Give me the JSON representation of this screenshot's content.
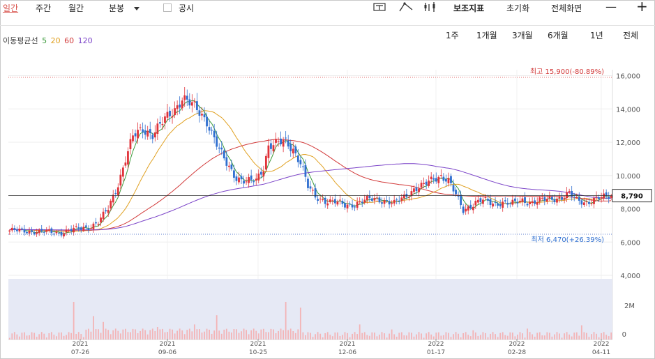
{
  "toolbar": {
    "tabs": [
      "일간",
      "주간",
      "월간"
    ],
    "interval": "분봉",
    "disclosure": "공시",
    "indicators": "보조지표",
    "reset": "초기화",
    "fullscreen": "전체화면",
    "minus": "—",
    "plus": "+"
  },
  "periods": [
    "1주",
    "1개월",
    "3개월",
    "6개월",
    "1년",
    "전체"
  ],
  "ma_legend": {
    "label": "이동평균선",
    "items": [
      {
        "name": "5",
        "color": "#3a9a3a"
      },
      {
        "name": "20",
        "color": "#e0a020"
      },
      {
        "name": "60",
        "color": "#d23a3a"
      },
      {
        "name": "120",
        "color": "#7a42c8"
      }
    ]
  },
  "colors": {
    "up": "#e0333a",
    "down": "#2f6fd0",
    "volume_bg": "#e6e9f5",
    "volume_bar": "#f3b4b6",
    "active_tab": "#d9544d"
  },
  "chart_data": {
    "type": "candlestick",
    "y_ticks": [
      "16,000",
      "14,000",
      "12,000",
      "10,000",
      "8,000",
      "6,000",
      "4,000"
    ],
    "ylim": [
      4000,
      16800
    ],
    "volume_ticks": [
      "2M",
      "0"
    ],
    "x_ticks": [
      {
        "year": "2021",
        "date": "07-26"
      },
      {
        "year": "2021",
        "date": "09-06"
      },
      {
        "year": "2021",
        "date": "10-25"
      },
      {
        "year": "2021",
        "date": "12-06"
      },
      {
        "year": "2022",
        "date": "01-17"
      },
      {
        "year": "2022",
        "date": "02-28"
      },
      {
        "year": "2022",
        "date": "04-11"
      }
    ],
    "high_label": "최고 15,900(-80.89%)",
    "high_value": 15900,
    "low_label": "최저 6,470(+26.39%)",
    "low_value": 6470,
    "current_price": 8790,
    "current_label": "8,790",
    "close_keypoints": [
      [
        0,
        6700
      ],
      [
        8,
        6650
      ],
      [
        16,
        6600
      ],
      [
        20,
        6550
      ],
      [
        24,
        6700
      ],
      [
        28,
        6800
      ],
      [
        32,
        6900
      ],
      [
        36,
        7200
      ],
      [
        40,
        8000
      ],
      [
        44,
        9500
      ],
      [
        47,
        11000
      ],
      [
        50,
        12300
      ],
      [
        54,
        12800
      ],
      [
        58,
        12500
      ],
      [
        61,
        13000
      ],
      [
        64,
        13500
      ],
      [
        67,
        14000
      ],
      [
        70,
        14700
      ],
      [
        74,
        14200
      ],
      [
        77,
        13800
      ],
      [
        80,
        13300
      ],
      [
        82,
        12600
      ],
      [
        85,
        11500
      ],
      [
        88,
        10700
      ],
      [
        92,
        9900
      ],
      [
        96,
        9600
      ],
      [
        100,
        9700
      ],
      [
        103,
        10500
      ],
      [
        105,
        11800
      ],
      [
        108,
        11900
      ],
      [
        112,
        12000
      ],
      [
        115,
        11600
      ],
      [
        118,
        10800
      ],
      [
        121,
        9300
      ],
      [
        124,
        8700
      ],
      [
        128,
        8500
      ],
      [
        132,
        8400
      ],
      [
        136,
        8200
      ],
      [
        140,
        8300
      ],
      [
        144,
        8500
      ],
      [
        148,
        8600
      ],
      [
        152,
        8500
      ],
      [
        156,
        8300
      ],
      [
        160,
        8700
      ],
      [
        164,
        9200
      ],
      [
        168,
        9400
      ],
      [
        172,
        9800
      ],
      [
        175,
        10000
      ],
      [
        178,
        9700
      ],
      [
        180,
        9100
      ],
      [
        182,
        8500
      ],
      [
        184,
        7900
      ],
      [
        186,
        8100
      ],
      [
        189,
        8400
      ],
      [
        192,
        8500
      ],
      [
        196,
        8300
      ],
      [
        200,
        8400
      ],
      [
        204,
        8300
      ],
      [
        208,
        8500
      ],
      [
        212,
        8400
      ],
      [
        216,
        8500
      ],
      [
        220,
        8600
      ],
      [
        224,
        8700
      ],
      [
        227,
        8900
      ],
      [
        230,
        8500
      ],
      [
        234,
        8400
      ],
      [
        238,
        8600
      ],
      [
        242,
        8700
      ],
      [
        244,
        8790
      ]
    ],
    "volume_spikes": [
      [
        26,
        0.45
      ],
      [
        34,
        0.28
      ],
      [
        38,
        0.21
      ],
      [
        60,
        0.15
      ],
      [
        75,
        0.18
      ],
      [
        84,
        0.29
      ],
      [
        112,
        0.45
      ],
      [
        118,
        0.38
      ],
      [
        142,
        0.18
      ],
      [
        155,
        0.12
      ],
      [
        188,
        0.11
      ],
      [
        210,
        0.13
      ],
      [
        232,
        0.17
      ]
    ],
    "candle_count": 245
  }
}
